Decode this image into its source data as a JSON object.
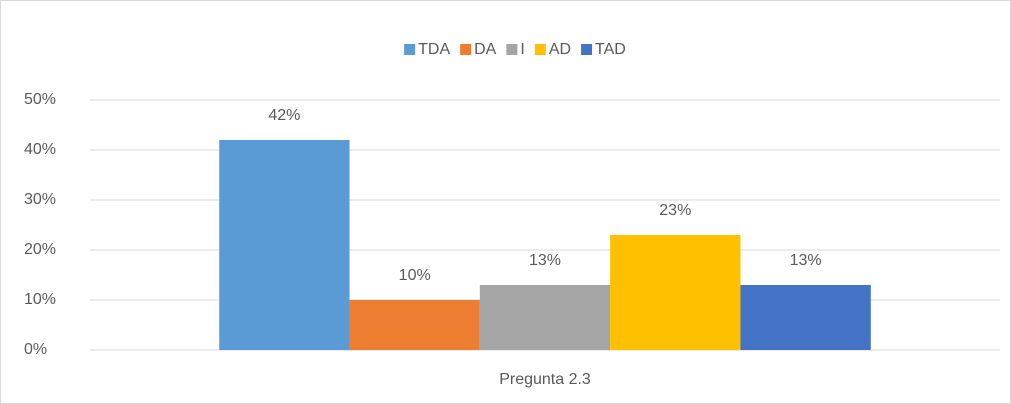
{
  "chart_data": {
    "type": "bar",
    "categories": [
      "Pregunta 2.3"
    ],
    "series": [
      {
        "name": "TDA",
        "color": "#5B9BD5",
        "values": [
          42
        ],
        "value_labels": [
          "42%"
        ]
      },
      {
        "name": "DA",
        "color": "#ED7D31",
        "values": [
          10
        ],
        "value_labels": [
          "10%"
        ]
      },
      {
        "name": "I",
        "color": "#A5A5A5",
        "values": [
          13
        ],
        "value_labels": [
          "13%"
        ]
      },
      {
        "name": "AD",
        "color": "#FFC000",
        "values": [
          23
        ],
        "value_labels": [
          "23%"
        ]
      },
      {
        "name": "TAD",
        "color": "#4472C4",
        "values": [
          13
        ],
        "value_labels": [
          "13%"
        ]
      }
    ],
    "ylim": [
      0,
      50
    ],
    "yticks": [
      {
        "value": 0,
        "label": "0%"
      },
      {
        "value": 10,
        "label": "10%"
      },
      {
        "value": 20,
        "label": "20%"
      },
      {
        "value": 30,
        "label": "30%"
      },
      {
        "value": 40,
        "label": "40%"
      },
      {
        "value": 50,
        "label": "50%"
      }
    ],
    "grid": true,
    "legend": "top"
  }
}
